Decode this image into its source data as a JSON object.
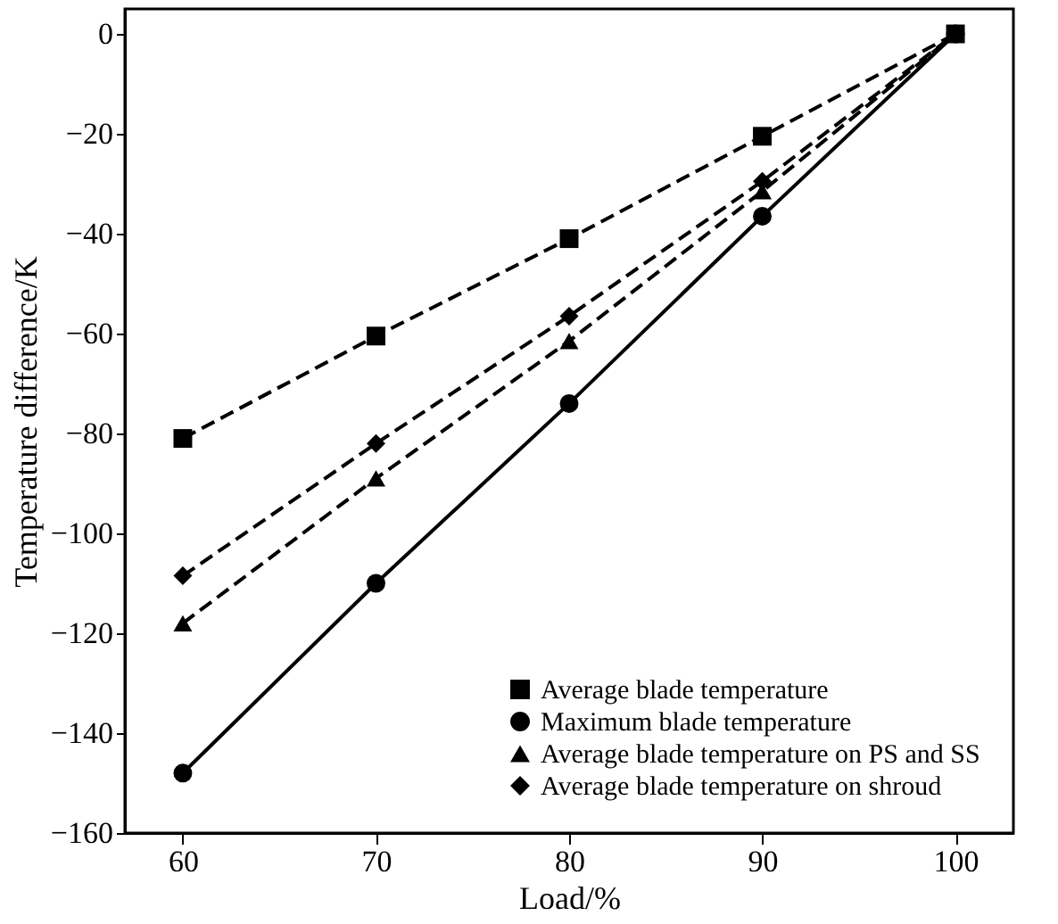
{
  "chart_data": {
    "type": "line",
    "xlabel": "Load/%",
    "ylabel": "Temperature difference/K",
    "x": [
      60,
      70,
      80,
      90,
      100
    ],
    "series": [
      {
        "name": "Average blade temperature",
        "color": "#000000",
        "marker": "square",
        "line_style": "dashed",
        "values": [
          -81,
          -60.5,
          -41,
          -20.5,
          0
        ]
      },
      {
        "name": "Maximum blade temperature",
        "color": "#000000",
        "marker": "circle",
        "line_style": "solid",
        "values": [
          -148,
          -110,
          -74,
          -36.5,
          0
        ]
      },
      {
        "name": "Average blade temperature on PS and SS",
        "color": "#000000",
        "marker": "triangle",
        "line_style": "dashed",
        "values": [
          -118,
          -89,
          -61.5,
          -31.5,
          0
        ]
      },
      {
        "name": "Average blade temperature on shroud",
        "color": "#000000",
        "marker": "diamond",
        "line_style": "dashed",
        "values": [
          -108.5,
          -82,
          -56.5,
          -29.5,
          0
        ]
      }
    ],
    "xlim": [
      57,
      103
    ],
    "xticks": [
      60,
      70,
      80,
      90,
      100
    ],
    "ylim": [
      -160,
      5
    ],
    "yticks": [
      -160,
      -140,
      -120,
      -100,
      -80,
      -60,
      -40,
      -20,
      0
    ],
    "grid": false,
    "legend": "bottom right"
  }
}
